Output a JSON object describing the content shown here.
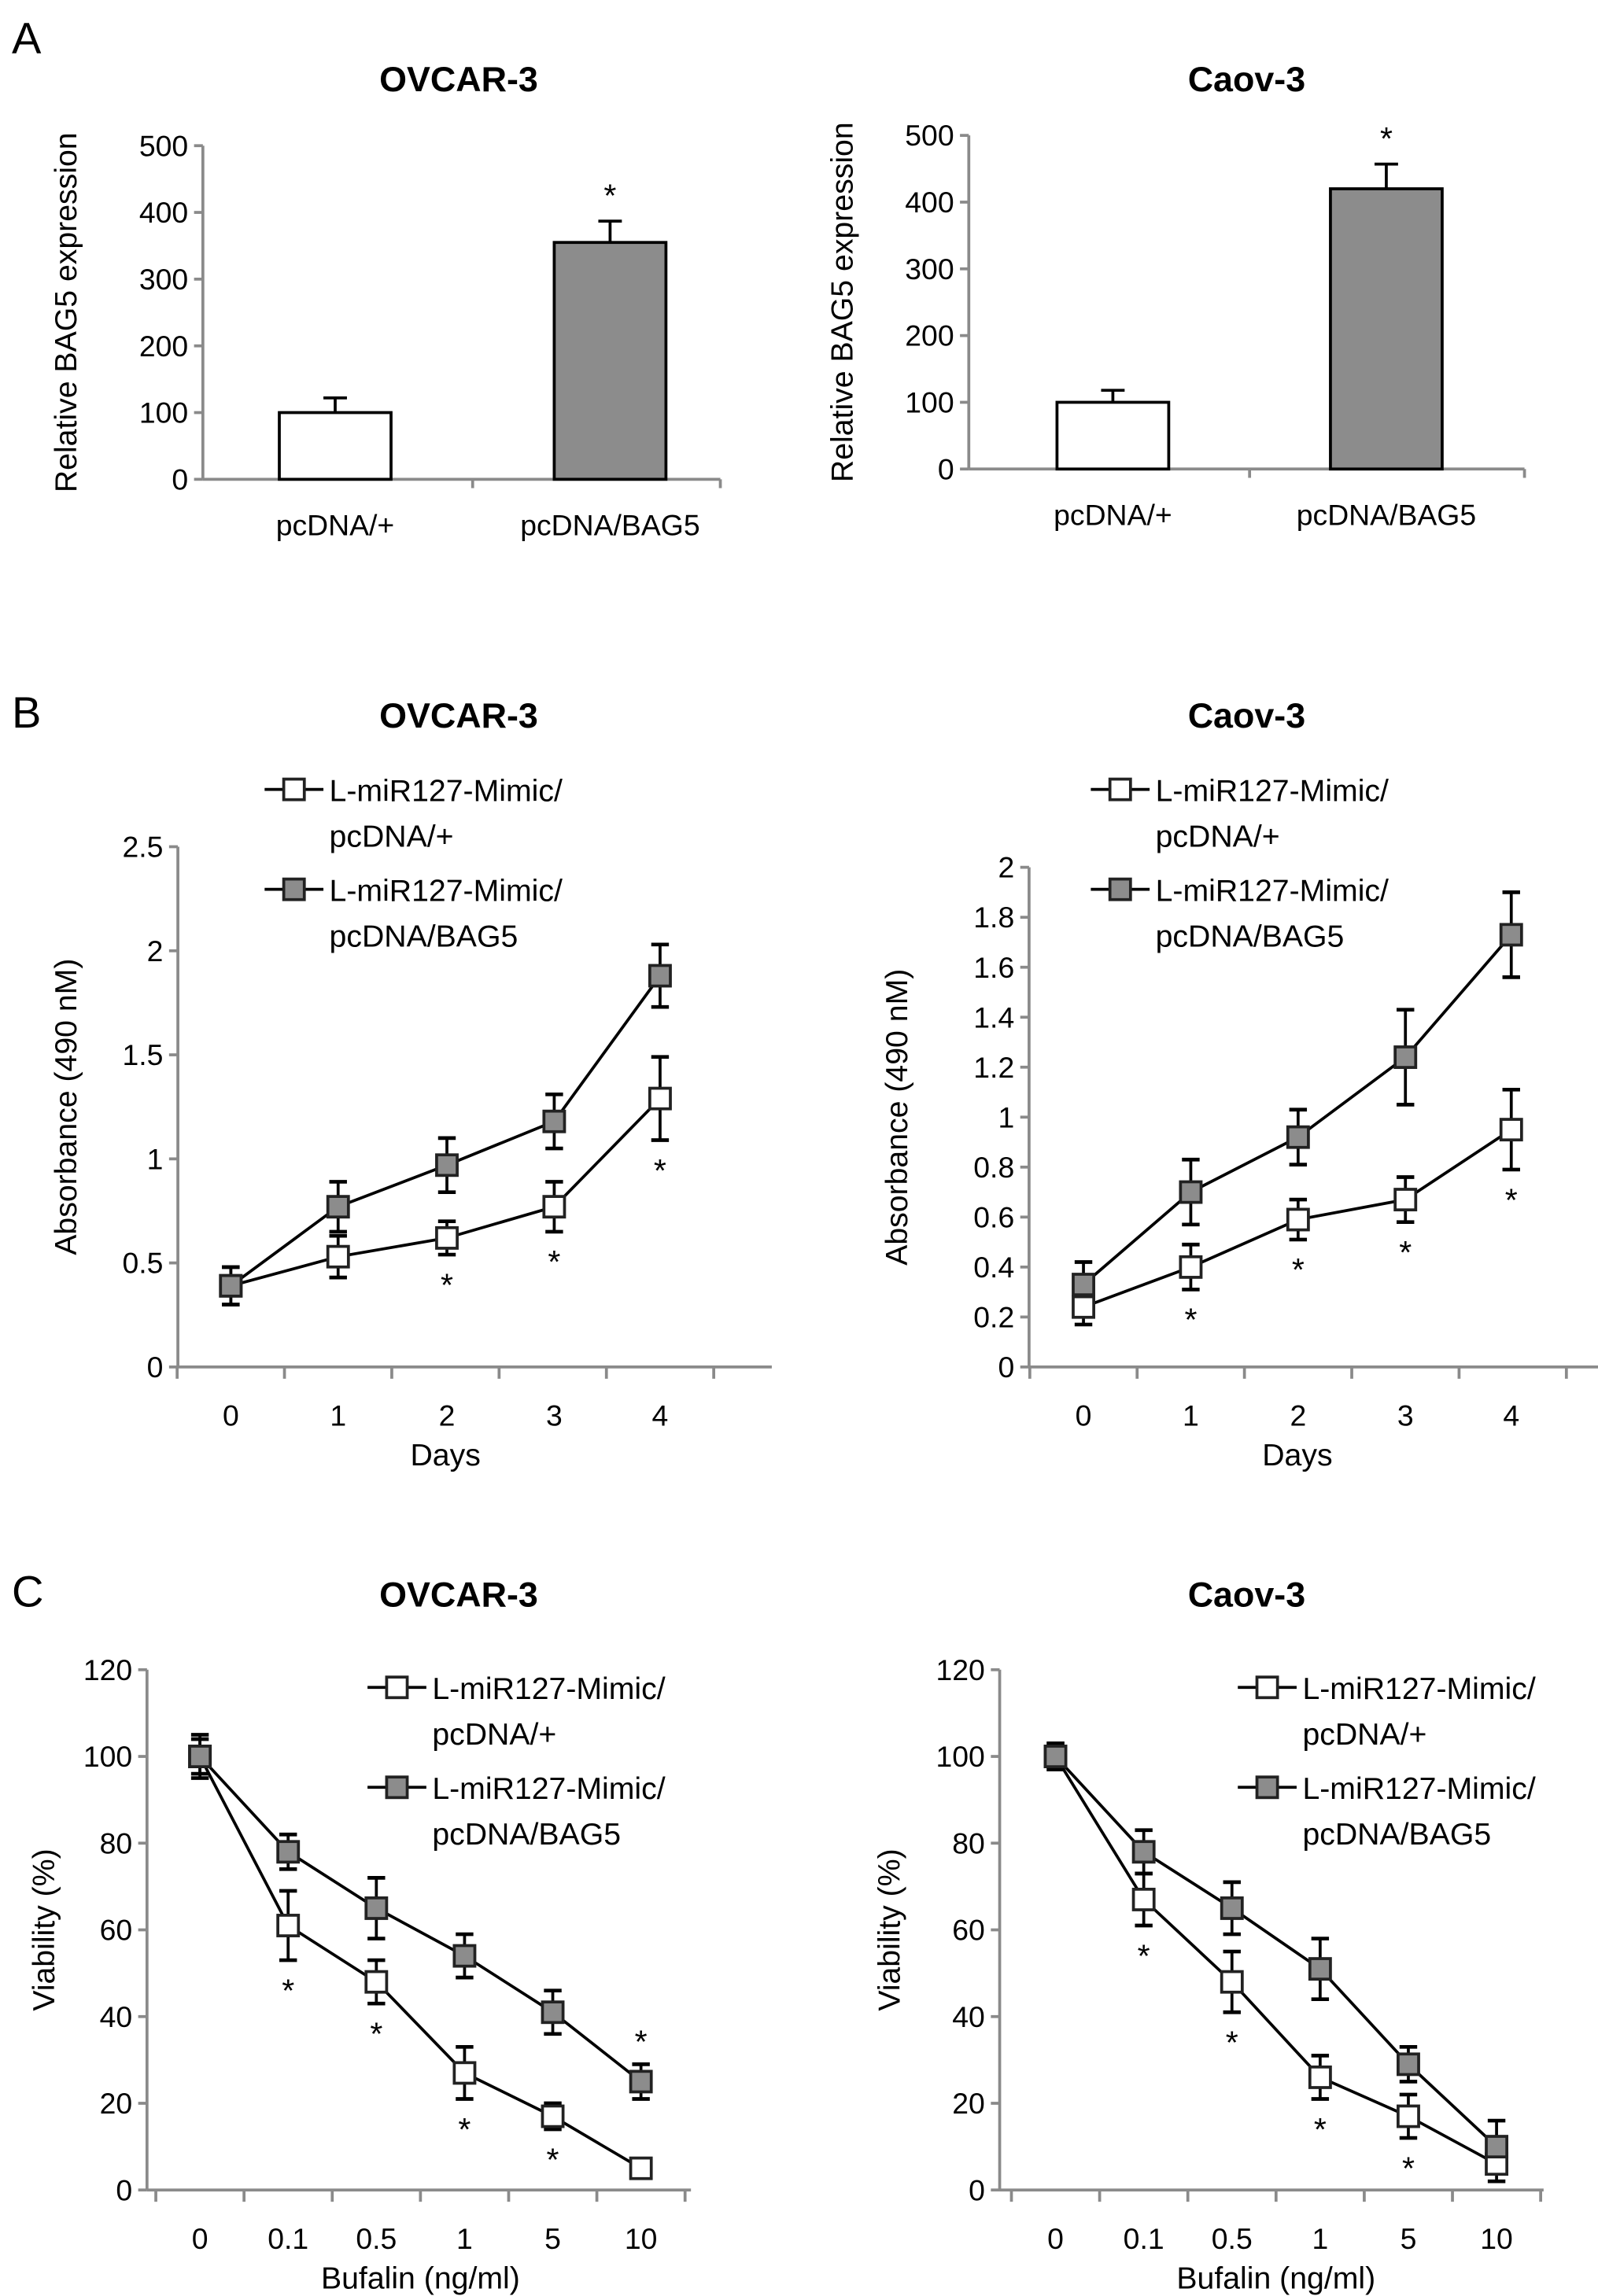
{
  "panel_letters": [
    "A",
    "B",
    "C"
  ],
  "colors": {
    "open": "#ffffff",
    "filled": "#8c8c8c",
    "axis": "#8a8a8a",
    "line": "#000000"
  },
  "chart_data": [
    {
      "panel": "A",
      "type": "bar",
      "title": "OVCAR-3",
      "ylabel": "Relative BAG5 expression",
      "xlabel": "",
      "categories": [
        "pcDNA/+",
        "pcDNA/BAG5"
      ],
      "values": [
        100,
        355
      ],
      "errors": [
        22,
        32
      ],
      "ylim": [
        0,
        500
      ],
      "yticks": [
        "0",
        "100",
        "200",
        "300",
        "400",
        "500"
      ],
      "yticks_values": [
        0,
        100,
        200,
        300,
        400,
        500
      ],
      "significance": [
        "",
        "*"
      ]
    },
    {
      "panel": "A",
      "type": "bar",
      "title": "Caov-3",
      "ylabel": "Relative BAG5 expression",
      "xlabel": "",
      "categories": [
        "pcDNA/+",
        "pcDNA/BAG5"
      ],
      "values": [
        100,
        420
      ],
      "errors": [
        18,
        37
      ],
      "ylim": [
        0,
        500
      ],
      "yticks": [
        "0",
        "100",
        "200",
        "300",
        "400",
        "500"
      ],
      "yticks_values": [
        0,
        100,
        200,
        300,
        400,
        500
      ],
      "significance": [
        "",
        "*"
      ]
    },
    {
      "panel": "B",
      "type": "line",
      "title": "OVCAR-3",
      "ylabel": "Absorbance (490 nM)",
      "xlabel": "Days",
      "categories": [
        "0",
        "1",
        "2",
        "3",
        "4"
      ],
      "ylim": [
        0,
        2.5
      ],
      "yticks": [
        "0",
        "0.5",
        "1",
        "1.5",
        "2",
        "2.5"
      ],
      "yticks_values": [
        0,
        0.5,
        1,
        1.5,
        2,
        2.5
      ],
      "legend_placement": "top-left",
      "series": [
        {
          "name": "L-miR127-Mimic/ pcDNA/+",
          "legend_lines": [
            "L-miR127-Mimic/",
            "pcDNA/+"
          ],
          "marker": "open",
          "values": [
            0.39,
            0.53,
            0.62,
            0.77,
            1.29
          ],
          "errors": [
            0.09,
            0.1,
            0.08,
            0.12,
            0.2
          ]
        },
        {
          "name": "L-miR127-Mimic/ pcDNA/BAG5",
          "legend_lines": [
            "L-miR127-Mimic/",
            "pcDNA/BAG5"
          ],
          "marker": "filled",
          "values": [
            0.39,
            0.77,
            0.97,
            1.18,
            1.88
          ],
          "errors": [
            0.09,
            0.12,
            0.13,
            0.13,
            0.15
          ]
        }
      ],
      "significance": [
        "",
        "",
        "*",
        "*",
        "*"
      ]
    },
    {
      "panel": "B",
      "type": "line",
      "title": "Caov-3",
      "ylabel": "Absorbance (490 nM)",
      "xlabel": "Days",
      "categories": [
        "0",
        "1",
        "2",
        "3",
        "4"
      ],
      "ylim": [
        0,
        2
      ],
      "yticks": [
        "0",
        "0.2",
        "0.4",
        "0.6",
        "0.8",
        "1",
        "1.2",
        "1.4",
        "1.6",
        "1.8",
        "2"
      ],
      "yticks_values": [
        0,
        0.2,
        0.4,
        0.6,
        0.8,
        1,
        1.2,
        1.4,
        1.6,
        1.8,
        2
      ],
      "legend_placement": "top-left",
      "series": [
        {
          "name": "L-miR127-Mimic/ pcDNA/+",
          "legend_lines": [
            "L-miR127-Mimic/",
            "pcDNA/+"
          ],
          "marker": "open",
          "values": [
            0.24,
            0.4,
            0.59,
            0.67,
            0.95
          ],
          "errors": [
            0.07,
            0.09,
            0.08,
            0.09,
            0.16
          ]
        },
        {
          "name": "L-miR127-Mimic/ pcDNA/BAG5",
          "legend_lines": [
            "L-miR127-Mimic/",
            "pcDNA/BAG5"
          ],
          "marker": "filled",
          "values": [
            0.33,
            0.7,
            0.92,
            1.24,
            1.73
          ],
          "errors": [
            0.09,
            0.13,
            0.11,
            0.19,
            0.17
          ]
        }
      ],
      "significance": [
        "",
        "*",
        "*",
        "*",
        "*"
      ]
    },
    {
      "panel": "C",
      "type": "line",
      "title": "OVCAR-3",
      "ylabel": "Viability (%)",
      "xlabel": "Bufalin (ng/ml)",
      "categories": [
        "0",
        "0.1",
        "0.5",
        "1",
        "5",
        "10"
      ],
      "ylim": [
        0,
        120
      ],
      "yticks": [
        "0",
        "20",
        "40",
        "60",
        "80",
        "100",
        "120"
      ],
      "yticks_values": [
        0,
        20,
        40,
        60,
        80,
        100,
        120
      ],
      "legend_placement": "top-right",
      "series": [
        {
          "name": "L-miR127-Mimic/ pcDNA/+",
          "legend_lines": [
            "L-miR127-Mimic/",
            "pcDNA/+"
          ],
          "marker": "open",
          "values": [
            100,
            61,
            48,
            27,
            17,
            5
          ],
          "errors": [
            4,
            8,
            5,
            6,
            3,
            1
          ]
        },
        {
          "name": "L-miR127-Mimic/ pcDNA/BAG5",
          "legend_lines": [
            "L-miR127-Mimic/",
            "pcDNA/BAG5"
          ],
          "marker": "filled",
          "values": [
            100,
            78,
            65,
            54,
            41,
            25
          ],
          "errors": [
            5,
            4,
            7,
            5,
            5,
            4
          ]
        }
      ],
      "significance": [
        "",
        "*",
        "*",
        "*",
        "*",
        "*"
      ]
    },
    {
      "panel": "C",
      "type": "line",
      "title": "Caov-3",
      "ylabel": "Viability (%)",
      "xlabel": "Bufalin (ng/ml)",
      "categories": [
        "0",
        "0.1",
        "0.5",
        "1",
        "5",
        "10"
      ],
      "ylim": [
        0,
        120
      ],
      "yticks": [
        "0",
        "20",
        "40",
        "60",
        "80",
        "100",
        "120"
      ],
      "yticks_values": [
        0,
        20,
        40,
        60,
        80,
        100,
        120
      ],
      "legend_placement": "top-right",
      "series": [
        {
          "name": "L-miR127-Mimic/ pcDNA/+",
          "legend_lines": [
            "L-miR127-Mimic/",
            "pcDNA/+"
          ],
          "marker": "open",
          "values": [
            100,
            67,
            48,
            26,
            17,
            6
          ],
          "errors": [
            3,
            6,
            7,
            5,
            5,
            4
          ]
        },
        {
          "name": "L-miR127-Mimic/ pcDNA/BAG5",
          "legend_lines": [
            "L-miR127-Mimic/",
            "pcDNA/BAG5"
          ],
          "marker": "filled",
          "values": [
            100,
            78,
            65,
            51,
            29,
            10
          ],
          "errors": [
            3,
            5,
            6,
            7,
            4,
            6
          ]
        }
      ],
      "significance": [
        "",
        "*",
        "*",
        "*",
        "*",
        ""
      ]
    }
  ]
}
